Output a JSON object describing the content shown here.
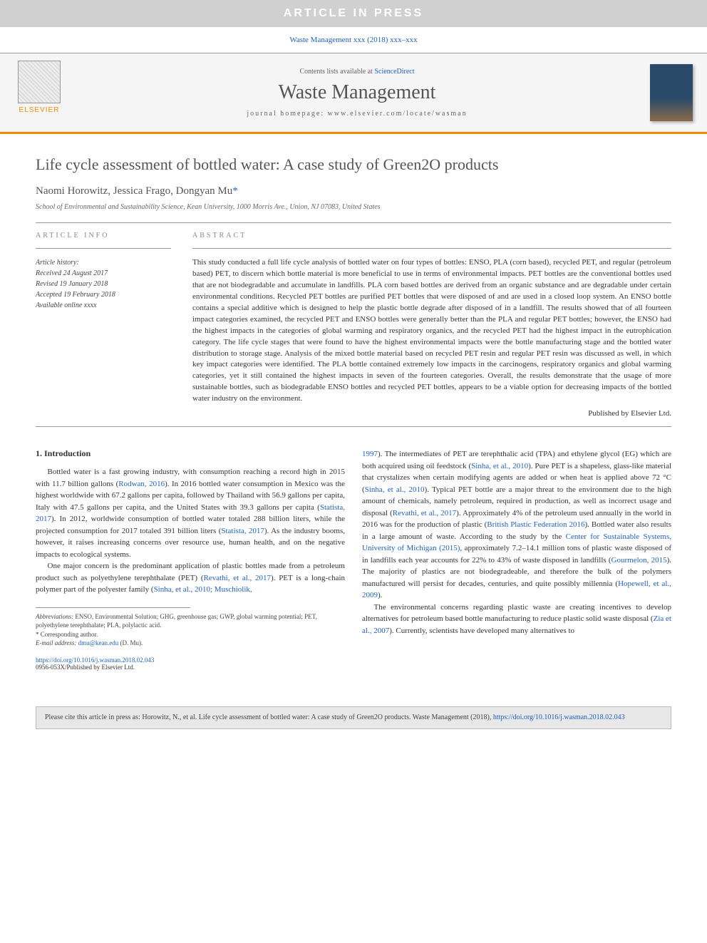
{
  "banner": "ARTICLE IN PRESS",
  "citation_header": "Waste Management xxx (2018) xxx–xxx",
  "header": {
    "contents_text": "Contents lists available at ",
    "contents_link": "ScienceDirect",
    "journal_title": "Waste Management",
    "homepage_label": "journal homepage: ",
    "homepage_url": "www.elsevier.com/locate/wasman",
    "elsevier_label": "ELSEVIER"
  },
  "article": {
    "title": "Life cycle assessment of bottled water: A case study of Green2O products",
    "authors_plain": "Naomi Horowitz, Jessica Frago, Dongyan Mu",
    "corr_marker": "*",
    "affiliation": "School of Environmental and Sustainability Science, Kean University, 1000 Morris Ave., Union, NJ 07083, United States"
  },
  "info": {
    "heading": "ARTICLE INFO",
    "history_label": "Article history:",
    "received": "Received 24 August 2017",
    "revised": "Revised 19 January 2018",
    "accepted": "Accepted 19 February 2018",
    "online": "Available online xxxx"
  },
  "abstract": {
    "heading": "ABSTRACT",
    "text": "This study conducted a full life cycle analysis of bottled water on four types of bottles: ENSO, PLA (corn based), recycled PET, and regular (petroleum based) PET, to discern which bottle material is more beneficial to use in terms of environmental impacts. PET bottles are the conventional bottles used that are not biodegradable and accumulate in landfills. PLA corn based bottles are derived from an organic substance and are degradable under certain environmental conditions. Recycled PET bottles are purified PET bottles that were disposed of and are used in a closed loop system. An ENSO bottle contains a special additive which is designed to help the plastic bottle degrade after disposed of in a landfill. The results showed that of all fourteen impact categories examined, the recycled PET and ENSO bottles were generally better than the PLA and regular PET bottles; however, the ENSO had the highest impacts in the categories of global warming and respiratory organics, and the recycled PET had the highest impact in the eutrophication category. The life cycle stages that were found to have the highest environmental impacts were the bottle manufacturing stage and the bottled water distribution to storage stage. Analysis of the mixed bottle material based on recycled PET resin and regular PET resin was discussed as well, in which key impact categories were identified. The PLA bottle contained extremely low impacts in the carcinogens, respiratory organics and global warming categories, yet it still contained the highest impacts in seven of the fourteen categories. Overall, the results demonstrate that the usage of more sustainable bottles, such as biodegradable ENSO bottles and recycled PET bottles, appears to be a viable option for decreasing impacts of the bottled water industry on the environment.",
    "publisher": "Published by Elsevier Ltd."
  },
  "introduction": {
    "heading": "1. Introduction",
    "p1_a": "Bottled water is a fast growing industry, with consumption reaching a record high in 2015 with 11.7 billion gallons (",
    "p1_ref1": "Rodwan, 2016",
    "p1_b": "). In 2016 bottled water consumption in Mexico was the highest worldwide with 67.2 gallons per capita, followed by Thailand with 56.9 gallons per capita, Italy with 47.5 gallons per capita, and the United States with 39.3 gallons per capita (",
    "p1_ref2": "Statista, 2017",
    "p1_c": "). In 2012, worldwide consumption of bottled water totaled 288 billion liters, while the projected consumption for 2017 totaled 391 billion liters (",
    "p1_ref3": "Statista, 2017",
    "p1_d": "). As the industry booms, however, it raises increasing concerns over resource use, human health, and on the negative impacts to ecological systems.",
    "p2_a": "One major concern is the predominant application of plastic bottles made from a petroleum product such as polyethylene terephthalate (PET) (",
    "p2_ref1": "Revathi, et al., 2017",
    "p2_b": "). PET is a long-chain polymer part of the polyester family (",
    "p2_ref2": "Sinha, et al., 2010; Muschiolik,",
    "col2_ref1": "1997",
    "col2_a": "). The intermediates of PET are terephthalic acid (TPA) and ethylene glycol (EG) which are both acquired using oil feedstock (",
    "col2_ref2": "Sinha, et al., 2010",
    "col2_b": "). Pure PET is a shapeless, glass-like material that crystalizes when certain modifying agents are added or when heat is applied above 72 °C (",
    "col2_ref3": "Sinha, et al., 2010",
    "col2_c": "). Typical PET bottle are a major threat to the environment due to the high amount of chemicals, namely petroleum, required in production, as well as incorrect usage and disposal (",
    "col2_ref4": "Revathi, et al., 2017",
    "col2_d": "). Approximately 4% of the petroleum used annually in the world in 2016 was for the production of plastic (",
    "col2_ref5": "British Plastic Federation 2016",
    "col2_e": "). Bottled water also results in a large amount of waste. According to the study by the ",
    "col2_ref6": "Center for Sustainable Systems, University of Michigan (2015)",
    "col2_f": ", approximately 7.2–14.1 million tons of plastic waste disposed of in landfills each year accounts for 22% to 43% of waste disposed in landfills (",
    "col2_ref7": "Gourmelon, 2015",
    "col2_g": "). The majority of plastics are not biodegradeable, and therefore the bulk of the polymers manufactured will persist for decades, centuries, and quite possibly millennia (",
    "col2_ref8": "Hopewell, et al., 2009",
    "col2_h": ").",
    "p3_a": "The environmental concerns regarding plastic waste are creating incentives to develop alternatives for petroleum based bottle manufacturing to reduce plastic solid waste disposal (",
    "p3_ref1": "Zia et al., 2007",
    "p3_b": "). Currently, scientists have developed many alternatives to"
  },
  "footnotes": {
    "abbrev_label": "Abbreviations:",
    "abbrev_text": " ENSO, Environmental Solution; GHG, greenhouse gas; GWP, global warming potential; PET, polyethylene terephthalate; PLA, polylactic acid.",
    "corr_label": "* Corresponding author.",
    "email_label": "E-mail address: ",
    "email": "dmu@kean.edu",
    "email_attr": " (D. Mu)."
  },
  "doi": {
    "url": "https://doi.org/10.1016/j.wasman.2018.02.043",
    "issn": "0956-053X/Published by Elsevier Ltd."
  },
  "citebox": {
    "text": "Please cite this article in press as: Horowitz, N., et al. Life cycle assessment of bottled water: A case study of Green2O products. Waste Management (2018), ",
    "link": "https://doi.org/10.1016/j.wasman.2018.02.043"
  },
  "colors": {
    "accent_orange": "#ed8b00",
    "link_blue": "#2060c0",
    "banner_gray": "#d0d0d0",
    "text_gray": "#555555"
  }
}
